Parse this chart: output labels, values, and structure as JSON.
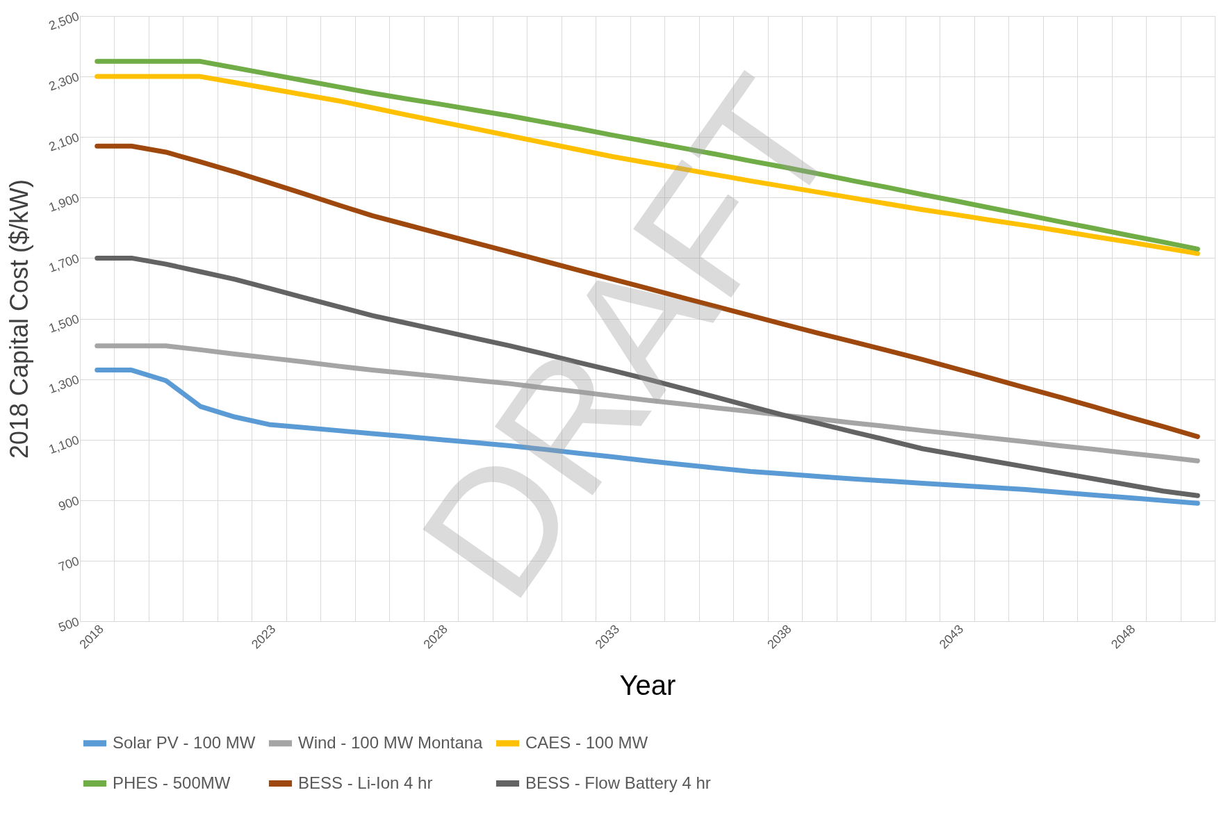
{
  "chart_data": {
    "type": "line",
    "xlabel": "Year",
    "ylabel": "2018 Capital Cost ($/kW)",
    "categories": [
      "2018",
      null,
      null,
      null,
      null,
      "2023",
      null,
      null,
      null,
      null,
      "2028",
      null,
      null,
      null,
      null,
      "2033",
      null,
      null,
      null,
      null,
      "2038",
      null,
      null,
      null,
      null,
      "2043",
      null,
      null,
      null,
      null,
      "2048",
      null,
      null
    ],
    "ylim": [
      500,
      2500
    ],
    "yticks": [
      {
        "value": 500,
        "label": "500"
      },
      {
        "value": 700,
        "label": "700"
      },
      {
        "value": 900,
        "label": "900"
      },
      {
        "value": 1100,
        "label": "1,100"
      },
      {
        "value": 1300,
        "label": "1,300"
      },
      {
        "value": 1500,
        "label": "1,500"
      },
      {
        "value": 1700,
        "label": "1,700"
      },
      {
        "value": 1900,
        "label": "1,900"
      },
      {
        "value": 2100,
        "label": "2,100"
      },
      {
        "value": 2300,
        "label": "2,300"
      },
      {
        "value": 2500,
        "label": "2,500"
      }
    ],
    "grid": true,
    "legend": "bottom",
    "line_style": "solid",
    "marker": "none",
    "annotations": [
      "DRAFT"
    ],
    "series": [
      {
        "name": "Solar PV - 100 MW",
        "color": "#5b9bd5",
        "values": [
          1330,
          1330,
          1295,
          1210,
          1175,
          1150,
          1140,
          1130,
          1120,
          1110,
          1100,
          1090,
          1080,
          1068,
          1055,
          1043,
          1030,
          1018,
          1006,
          995,
          987,
          978,
          970,
          963,
          956,
          949,
          942,
          935,
          926,
          917,
          908,
          899,
          890
        ]
      },
      {
        "name": "Wind - 100 MW Montana",
        "color": "#a5a5a5",
        "values": [
          1410,
          1410,
          1410,
          1397,
          1383,
          1370,
          1357,
          1343,
          1330,
          1319,
          1308,
          1296,
          1285,
          1271,
          1258,
          1244,
          1230,
          1218,
          1205,
          1193,
          1180,
          1168,
          1155,
          1143,
          1130,
          1118,
          1105,
          1093,
          1080,
          1068,
          1055,
          1043,
          1030
        ]
      },
      {
        "name": "CAES - 100 MW",
        "color": "#ffc000",
        "values": [
          2300,
          2300,
          2300,
          2300,
          2280,
          2260,
          2240,
          2220,
          2197,
          2173,
          2150,
          2127,
          2104,
          2081,
          2058,
          2035,
          2015,
          1995,
          1975,
          1955,
          1936,
          1917,
          1898,
          1879,
          1860,
          1843,
          1825,
          1808,
          1790,
          1771,
          1753,
          1734,
          1715
        ]
      },
      {
        "name": "PHES - 500MW",
        "color": "#70ad47",
        "values": [
          2350,
          2350,
          2350,
          2350,
          2329,
          2308,
          2287,
          2266,
          2245,
          2226,
          2208,
          2189,
          2170,
          2149,
          2128,
          2106,
          2085,
          2064,
          2043,
          2021,
          2000,
          1978,
          1955,
          1933,
          1910,
          1888,
          1865,
          1843,
          1820,
          1798,
          1775,
          1753,
          1730
        ]
      },
      {
        "name": "BESS - Li-Ion 4 hr",
        "color": "#9e480e",
        "values": [
          2070,
          2070,
          2050,
          2018,
          1985,
          1949,
          1913,
          1876,
          1840,
          1810,
          1780,
          1750,
          1720,
          1690,
          1660,
          1630,
          1600,
          1570,
          1540,
          1510,
          1480,
          1451,
          1423,
          1394,
          1365,
          1334,
          1303,
          1271,
          1240,
          1208,
          1175,
          1143,
          1110
        ]
      },
      {
        "name": "BESS - Flow Battery 4 hr",
        "color": "#636363",
        "values": [
          1700,
          1700,
          1680,
          1655,
          1630,
          1600,
          1570,
          1540,
          1510,
          1485,
          1460,
          1435,
          1410,
          1383,
          1355,
          1328,
          1300,
          1270,
          1240,
          1210,
          1180,
          1153,
          1125,
          1098,
          1070,
          1050,
          1030,
          1010,
          990,
          970,
          950,
          930,
          915
        ]
      }
    ]
  }
}
